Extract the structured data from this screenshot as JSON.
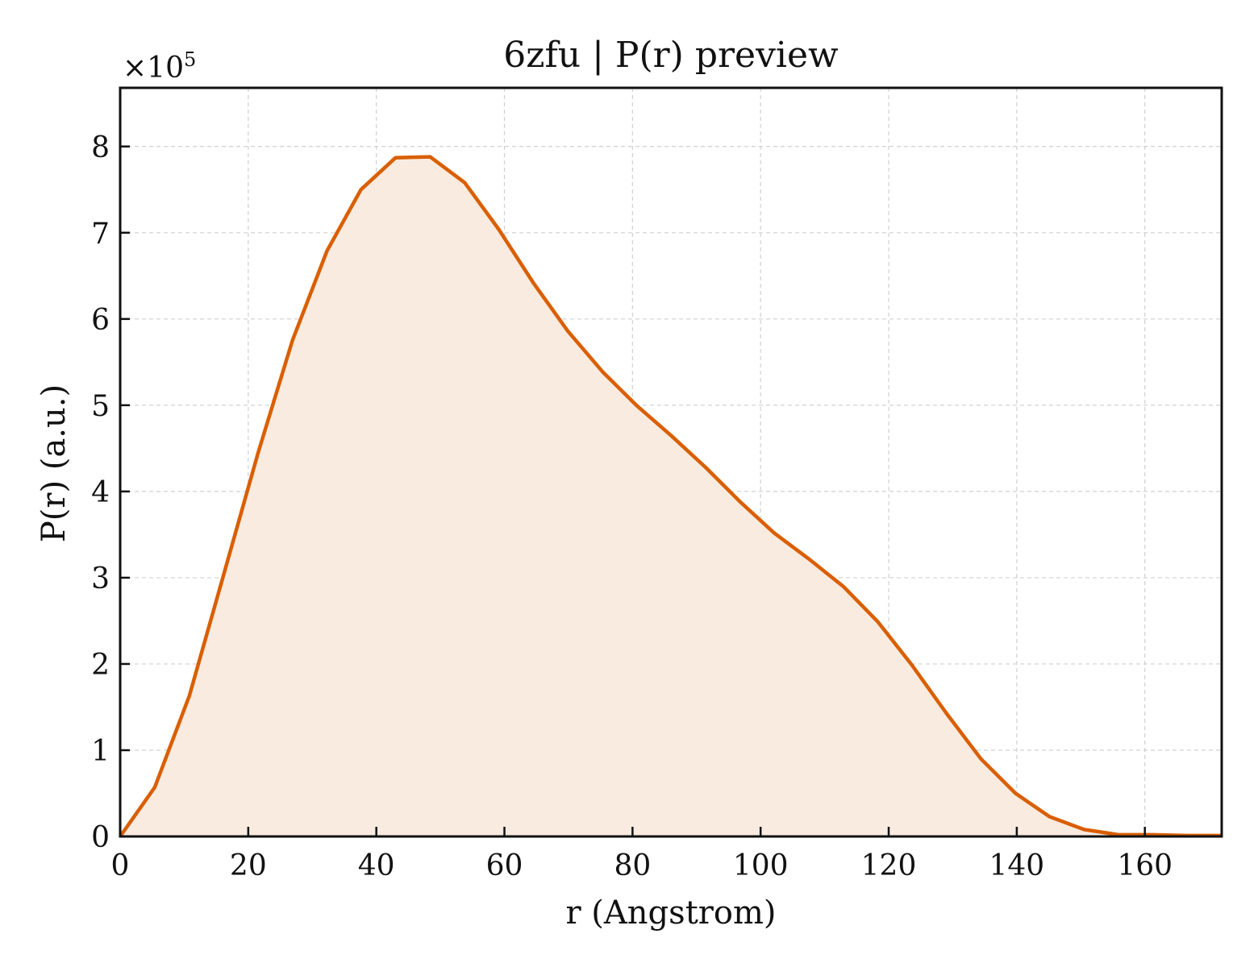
{
  "chart_data": {
    "type": "area",
    "title": "6zfu | P(r) preview",
    "xlabel": "r (Angstrom)",
    "ylabel": "P(r) (a.u.)",
    "y_multiplier_prefix": "×10",
    "y_multiplier_exponent": "5",
    "xlim": [
      0,
      172
    ],
    "ylim": [
      0,
      8.68
    ],
    "x_ticks": [
      0,
      20,
      40,
      60,
      80,
      100,
      120,
      140,
      160
    ],
    "y_ticks": [
      0,
      1,
      2,
      3,
      4,
      5,
      6,
      7,
      8
    ],
    "grid": true,
    "line_color": "#d95f02",
    "fill_color": "#f9ebe0",
    "series": [
      {
        "x": [
          0,
          5.4,
          10.8,
          16.1,
          21.5,
          26.9,
          32.3,
          37.6,
          43.0,
          48.4,
          53.8,
          59.1,
          64.5,
          69.9,
          75.3,
          80.6,
          86.0,
          91.4,
          96.8,
          102.1,
          107.5,
          112.9,
          118.3,
          123.6,
          129.0,
          134.4,
          139.8,
          145.1,
          150.5,
          155.9,
          161.3,
          166.6,
          172.0
        ],
        "y": [
          0,
          0.57,
          1.63,
          3.02,
          4.44,
          5.75,
          6.79,
          7.5,
          7.87,
          7.88,
          7.58,
          7.04,
          6.42,
          5.86,
          5.39,
          5.0,
          4.65,
          4.28,
          3.88,
          3.52,
          3.22,
          2.9,
          2.49,
          1.99,
          1.43,
          0.9,
          0.5,
          0.23,
          0.08,
          0.02,
          0.02,
          0.01,
          0.01
        ]
      }
    ]
  }
}
